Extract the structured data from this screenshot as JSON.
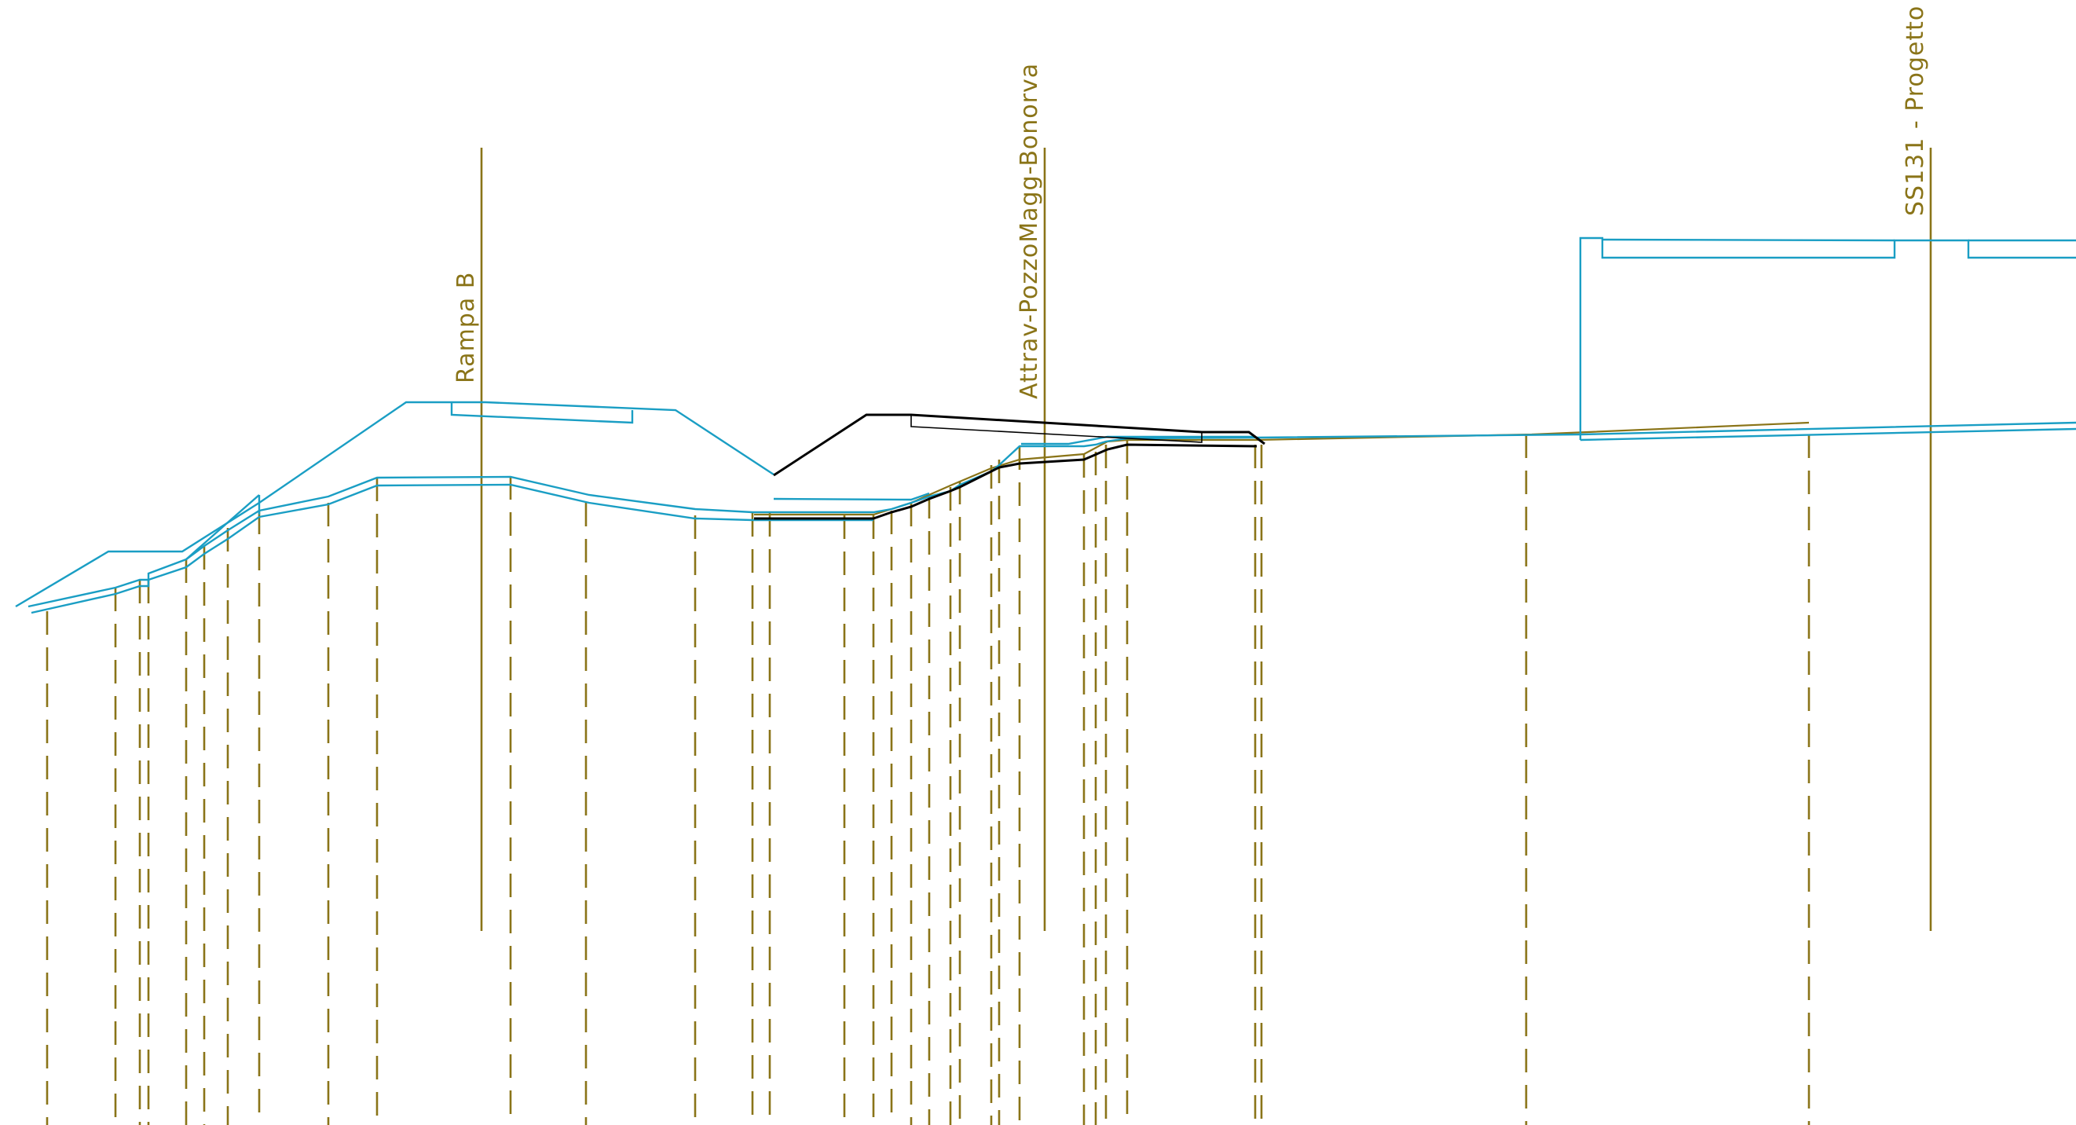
{
  "drawing": {
    "colors": {
      "project_profile": "#1a9ec4",
      "existing_profile": "#000000",
      "annotation": "#8a7418"
    },
    "labels": {
      "rampa_b": "Rampa  B",
      "attraversamento": "Attrav-PozzoMagg-Bonorva",
      "ss131": "SS131  -  Progetto"
    }
  }
}
